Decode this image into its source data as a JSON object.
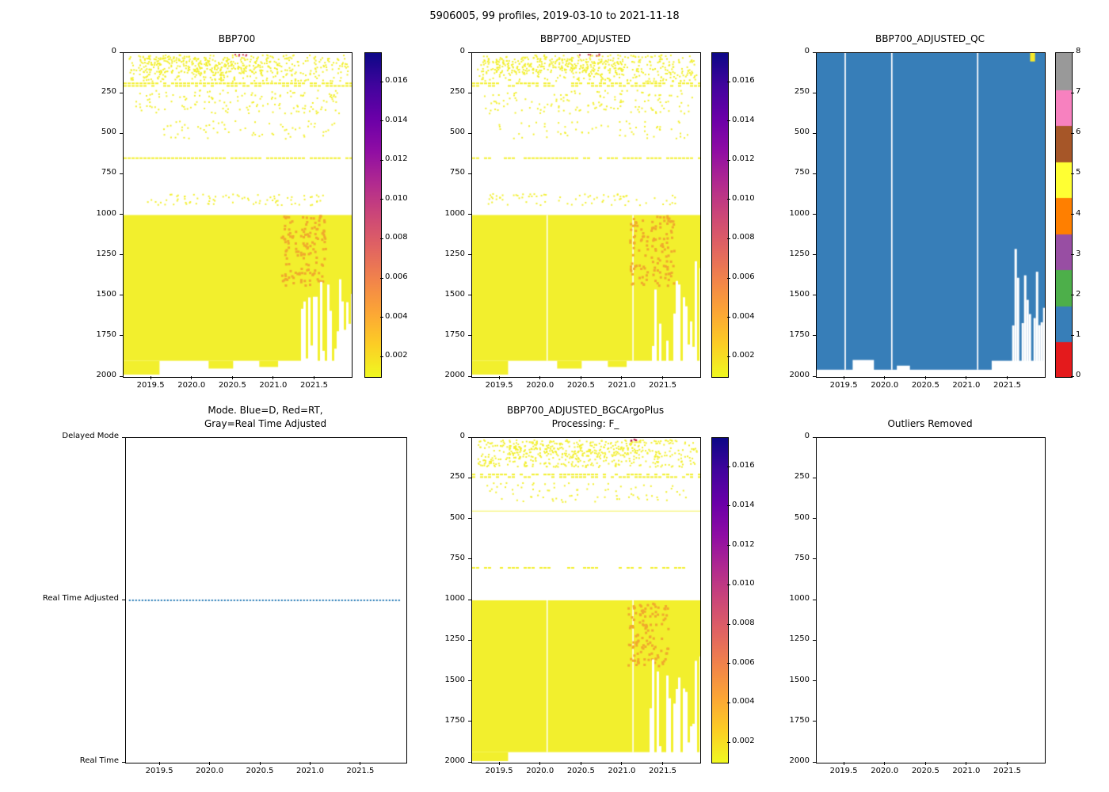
{
  "figure": {
    "title": "5906005, 99 profiles, 2019-03-10 to 2021-11-18",
    "float_id": "5906005",
    "n_profiles": "99",
    "date_range": "2019-03-10 to 2021-11-18"
  },
  "chart_data": [
    {
      "id": "bbp700",
      "type": "heatmap",
      "title": "BBP700",
      "xlabel": "",
      "ylabel": "",
      "xlim": [
        2019.16,
        2021.95
      ],
      "ylim": [
        0,
        2000
      ],
      "xticks": [
        2019.5,
        2020.0,
        2020.5,
        2021.0,
        2021.5
      ],
      "xtick_labels": [
        "2019.5",
        "2020.0",
        "2020.5",
        "2021.0",
        "2021.5"
      ],
      "yticks": [
        0,
        250,
        500,
        750,
        1000,
        1250,
        1500,
        1750,
        2000
      ],
      "ytick_labels": [
        "0",
        "250",
        "500",
        "750",
        "1000",
        "1250",
        "1500",
        "1750",
        "2000"
      ],
      "base_color": "#f2ef2d",
      "colorbar": {
        "vmin": 0.001,
        "vmax": 0.0175,
        "ticks": [
          0.002,
          0.004,
          0.006,
          0.008,
          0.01,
          0.012,
          0.014,
          0.016
        ],
        "tick_labels": [
          "0.002",
          "0.004",
          "0.006",
          "0.008",
          "0.010",
          "0.012",
          "0.014",
          "0.016"
        ],
        "stops": [
          "#f0f921",
          "#fcce25",
          "#fca636",
          "#f2844b",
          "#e16462",
          "#cc4778",
          "#b12a90",
          "#8f0da4",
          "#6a00a8",
          "#41049d",
          "#0d0887"
        ]
      },
      "elements": [
        {
          "el": "speckle",
          "x": [
            2019.22,
            2021.9
          ],
          "depth": [
            8,
            170
          ],
          "count": 430,
          "seed": 11
        },
        {
          "el": "speckle",
          "x": [
            2019.35,
            2021.0
          ],
          "depth": [
            25,
            120
          ],
          "count": 160,
          "seed": 12
        },
        {
          "el": "dashband",
          "depth": [
            182,
            192
          ],
          "density": 0.75,
          "seed": 13
        },
        {
          "el": "dashband",
          "depth": [
            198,
            207
          ],
          "density": 0.55,
          "seed": 14
        },
        {
          "el": "speckle",
          "x": [
            2019.3,
            2021.85
          ],
          "depth": [
            225,
            370
          ],
          "count": 150,
          "seed": 15
        },
        {
          "el": "speckle",
          "x": [
            2019.45,
            2021.8
          ],
          "depth": [
            415,
            525
          ],
          "count": 65,
          "seed": 16
        },
        {
          "el": "dashband",
          "depth": [
            644,
            652
          ],
          "density": 0.85,
          "seed": 17
        },
        {
          "el": "speckle",
          "x": [
            2019.35,
            2021.65
          ],
          "depth": [
            865,
            935
          ],
          "count": 80,
          "seed": 18
        },
        {
          "el": "rect",
          "depth": [
            1000,
            1900
          ]
        },
        {
          "el": "rect",
          "x": [
            2019.16,
            2019.6
          ],
          "depth": [
            1900,
            1985
          ]
        },
        {
          "el": "rect",
          "x": [
            2020.2,
            2020.5
          ],
          "depth": [
            1900,
            1948
          ]
        },
        {
          "el": "rect",
          "x": [
            2020.82,
            2021.05
          ],
          "depth": [
            1900,
            1938
          ]
        },
        {
          "el": "speckle",
          "x": [
            2021.08,
            2021.62
          ],
          "depth": [
            1000,
            1430
          ],
          "count": 140,
          "size": 3,
          "color": "#f0a92e",
          "seed": 19
        },
        {
          "el": "speckle",
          "x": [
            2020.45,
            2020.72
          ],
          "depth": [
            3,
            13
          ],
          "count": 6,
          "color": "#cf3c55",
          "seed": 20
        },
        {
          "el": "ragged",
          "x": [
            2021.33,
            2021.95
          ],
          "top": [
            1270,
            1960
          ],
          "keep": 0.18,
          "seed": 21
        }
      ]
    },
    {
      "id": "bbp700_adjusted",
      "type": "heatmap",
      "title": "BBP700_ADJUSTED",
      "xlabel": "",
      "ylabel": "",
      "xlim": [
        2019.16,
        2021.95
      ],
      "ylim": [
        0,
        2000
      ],
      "xticks": [
        2019.5,
        2020.0,
        2020.5,
        2021.0,
        2021.5
      ],
      "xtick_labels": [
        "2019.5",
        "2020.0",
        "2020.5",
        "2021.0",
        "2021.5"
      ],
      "yticks": [
        0,
        250,
        500,
        750,
        1000,
        1250,
        1500,
        1750,
        2000
      ],
      "ytick_labels": [
        "0",
        "250",
        "500",
        "750",
        "1000",
        "1250",
        "1500",
        "1750",
        "2000"
      ],
      "base_color": "#f2ef2d",
      "colorbar": {
        "vmin": 0.001,
        "vmax": 0.0175,
        "ticks": [
          0.002,
          0.004,
          0.006,
          0.008,
          0.01,
          0.012,
          0.014,
          0.016
        ],
        "tick_labels": [
          "0.002",
          "0.004",
          "0.006",
          "0.008",
          "0.010",
          "0.012",
          "0.014",
          "0.016"
        ],
        "stops": [
          "#f0f921",
          "#fcce25",
          "#fca636",
          "#f2844b",
          "#e16462",
          "#cc4778",
          "#b12a90",
          "#8f0da4",
          "#6a00a8",
          "#41049d",
          "#0d0887"
        ]
      },
      "elements": [
        {
          "el": "speckle",
          "x": [
            2019.22,
            2021.9
          ],
          "depth": [
            8,
            170
          ],
          "count": 420,
          "seed": 111
        },
        {
          "el": "speckle",
          "x": [
            2019.35,
            2021.0
          ],
          "depth": [
            25,
            120
          ],
          "count": 150,
          "seed": 112
        },
        {
          "el": "dashband",
          "depth": [
            182,
            192
          ],
          "density": 0.72,
          "seed": 113
        },
        {
          "el": "dashband",
          "depth": [
            198,
            207
          ],
          "density": 0.52,
          "seed": 114
        },
        {
          "el": "speckle",
          "x": [
            2019.3,
            2021.85
          ],
          "depth": [
            225,
            370
          ],
          "count": 140,
          "seed": 115
        },
        {
          "el": "speckle",
          "x": [
            2019.45,
            2021.8
          ],
          "depth": [
            415,
            525
          ],
          "count": 60,
          "seed": 116
        },
        {
          "el": "dashband",
          "depth": [
            644,
            652
          ],
          "density": 0.82,
          "seed": 117
        },
        {
          "el": "speckle",
          "x": [
            2019.35,
            2021.65
          ],
          "depth": [
            865,
            935
          ],
          "count": 75,
          "seed": 118
        },
        {
          "el": "rect",
          "depth": [
            1000,
            1900
          ]
        },
        {
          "el": "rect",
          "x": [
            2019.16,
            2019.6
          ],
          "depth": [
            1900,
            1985
          ]
        },
        {
          "el": "rect",
          "x": [
            2020.2,
            2020.5
          ],
          "depth": [
            1900,
            1948
          ]
        },
        {
          "el": "rect",
          "x": [
            2020.82,
            2021.05
          ],
          "depth": [
            1900,
            1938
          ]
        },
        {
          "el": "rect",
          "x": [
            2020.07,
            2020.085
          ],
          "depth": [
            1000,
            1900
          ],
          "color": "#ffffff"
        },
        {
          "el": "rect",
          "x": [
            2021.12,
            2021.135
          ],
          "depth": [
            1000,
            1900
          ],
          "color": "#ffffff"
        },
        {
          "el": "speckle",
          "x": [
            2021.08,
            2021.62
          ],
          "depth": [
            1000,
            1430
          ],
          "count": 130,
          "size": 3,
          "color": "#f0a92e",
          "seed": 119
        },
        {
          "el": "speckle",
          "x": [
            2020.45,
            2020.72
          ],
          "depth": [
            3,
            13
          ],
          "count": 6,
          "color": "#cf3c55",
          "seed": 120
        },
        {
          "el": "ragged",
          "x": [
            2021.33,
            2021.95
          ],
          "top": [
            1270,
            1960
          ],
          "keep": 0.18,
          "seed": 121
        }
      ]
    },
    {
      "id": "qc",
      "type": "heatmap",
      "title": "BBP700_ADJUSTED_QC",
      "xlabel": "",
      "ylabel": "",
      "xlim": [
        2019.16,
        2021.95
      ],
      "ylim": [
        0,
        2000
      ],
      "xticks": [
        2019.5,
        2020.0,
        2020.5,
        2021.0,
        2021.5
      ],
      "xtick_labels": [
        "2019.5",
        "2020.0",
        "2020.5",
        "2021.0",
        "2021.5"
      ],
      "yticks": [
        0,
        250,
        500,
        750,
        1000,
        1250,
        1500,
        1750,
        2000
      ],
      "ytick_labels": [
        "0",
        "250",
        "500",
        "750",
        "1000",
        "1250",
        "1500",
        "1750",
        "2000"
      ],
      "base_color": "#377eb8",
      "colorbar": {
        "discrete": true,
        "colors": [
          "#e41a1c",
          "#377eb8",
          "#4daf4a",
          "#984ea3",
          "#ff7f00",
          "#ffff33",
          "#a65628",
          "#f781bf",
          "#999999"
        ],
        "ticks": [
          0,
          1,
          2,
          3,
          4,
          5,
          6,
          7,
          8
        ],
        "tick_labels": [
          "0",
          "1",
          "2",
          "3",
          "4",
          "5",
          "6",
          "7",
          "8"
        ]
      },
      "elements": [
        {
          "el": "rect",
          "depth": [
            0,
            1955
          ],
          "color": "#377eb8"
        },
        {
          "el": "rect",
          "x": [
            2019.6,
            2019.86
          ],
          "depth": [
            1895,
            2000
          ],
          "color": "#ffffff"
        },
        {
          "el": "rect",
          "x": [
            2020.14,
            2020.3
          ],
          "depth": [
            1930,
            2000
          ],
          "color": "#ffffff"
        },
        {
          "el": "rect",
          "x": [
            2021.3,
            2021.95
          ],
          "depth": [
            1900,
            2000
          ],
          "color": "#ffffff"
        },
        {
          "el": "rect",
          "x": [
            2019.5,
            2019.517
          ],
          "depth": [
            0,
            1955
          ],
          "color": "#ffffff"
        },
        {
          "el": "rect",
          "x": [
            2020.07,
            2020.087
          ],
          "depth": [
            0,
            1955
          ],
          "color": "#ffffff"
        },
        {
          "el": "rect",
          "x": [
            2021.12,
            2021.137
          ],
          "depth": [
            0,
            1955
          ],
          "color": "#ffffff"
        },
        {
          "el": "ragged",
          "x": [
            2021.55,
            2021.95
          ],
          "top": [
            1180,
            1780
          ],
          "keep": 0.15,
          "seed": 31
        },
        {
          "el": "rect",
          "x": [
            2021.77,
            2021.83
          ],
          "depth": [
            0,
            52
          ],
          "color": "#f7e92a"
        }
      ]
    },
    {
      "id": "mode",
      "type": "line",
      "title": "Mode. Blue=D, Red=RT,\nGray=Real Time Adjusted",
      "xlabel": "",
      "ylabel": "",
      "xlim": [
        2019.16,
        2021.95
      ],
      "ylim": [
        2,
        0
      ],
      "xticks": [
        2019.5,
        2020.0,
        2020.5,
        2021.0,
        2021.5
      ],
      "xtick_labels": [
        "2019.5",
        "2020.0",
        "2020.5",
        "2021.0",
        "2021.5"
      ],
      "yticks": [
        2,
        1,
        0
      ],
      "ytick_labels": [
        "Delayed Mode",
        "Real Time Adjusted",
        "Real Time"
      ],
      "line_color": "#1f77b4",
      "elements": [
        {
          "el": "dotline",
          "x": [
            2019.19,
            2021.88
          ],
          "y": 1,
          "color": "#1f77b4"
        }
      ]
    },
    {
      "id": "bgcargoplus",
      "type": "heatmap",
      "title": "BBP700_ADJUSTED_BGCArgoPlus\nProcessing: F_",
      "xlabel": "",
      "ylabel": "",
      "xlim": [
        2019.16,
        2021.95
      ],
      "ylim": [
        0,
        2000
      ],
      "xticks": [
        2019.5,
        2020.0,
        2020.5,
        2021.0,
        2021.5
      ],
      "xtick_labels": [
        "2019.5",
        "2020.0",
        "2020.5",
        "2021.0",
        "2021.5"
      ],
      "yticks": [
        0,
        250,
        500,
        750,
        1000,
        1250,
        1500,
        1750,
        2000
      ],
      "ytick_labels": [
        "0",
        "250",
        "500",
        "750",
        "1000",
        "1250",
        "1500",
        "1750",
        "2000"
      ],
      "base_color": "#f2ef2d",
      "colorbar": {
        "vmin": 0.001,
        "vmax": 0.0175,
        "ticks": [
          0.002,
          0.004,
          0.006,
          0.008,
          0.01,
          0.012,
          0.014,
          0.016
        ],
        "tick_labels": [
          "0.002",
          "0.004",
          "0.006",
          "0.008",
          "0.010",
          "0.012",
          "0.014",
          "0.016"
        ],
        "stops": [
          "#f0f921",
          "#fcce25",
          "#fca636",
          "#f2844b",
          "#e16462",
          "#cc4778",
          "#b12a90",
          "#8f0da4",
          "#6a00a8",
          "#41049d",
          "#0d0887"
        ]
      },
      "elements": [
        {
          "el": "speckle",
          "x": [
            2019.22,
            2021.9
          ],
          "depth": [
            8,
            175
          ],
          "count": 440,
          "seed": 51
        },
        {
          "el": "speckle",
          "x": [
            2019.6,
            2021.2
          ],
          "depth": [
            20,
            120
          ],
          "count": 150,
          "seed": 52
        },
        {
          "el": "dashband",
          "depth": [
            220,
            230
          ],
          "density": 0.8,
          "seed": 53
        },
        {
          "el": "dashband",
          "depth": [
            236,
            245
          ],
          "density": 0.6,
          "seed": 54
        },
        {
          "el": "speckle",
          "x": [
            2019.3,
            2021.8
          ],
          "depth": [
            270,
            390
          ],
          "count": 80,
          "seed": 55
        },
        {
          "el": "rect",
          "depth": [
            448,
            452
          ]
        },
        {
          "el": "dashband",
          "depth": [
            795,
            803
          ],
          "density": 0.5,
          "seed": 56
        },
        {
          "el": "rect",
          "depth": [
            1000,
            1935
          ]
        },
        {
          "el": "rect",
          "x": [
            2019.16,
            2019.6
          ],
          "depth": [
            1935,
            1990
          ]
        },
        {
          "el": "rect",
          "x": [
            2020.07,
            2020.085
          ],
          "depth": [
            1000,
            1935
          ],
          "color": "#ffffff"
        },
        {
          "el": "rect",
          "x": [
            2021.12,
            2021.135
          ],
          "depth": [
            1000,
            1935
          ],
          "color": "#ffffff"
        },
        {
          "el": "speckle",
          "x": [
            2021.05,
            2021.55
          ],
          "depth": [
            1000,
            1400
          ],
          "count": 120,
          "size": 3,
          "color": "#f0a92e",
          "seed": 57
        },
        {
          "el": "speckle",
          "x": [
            2021.02,
            2021.18
          ],
          "depth": [
            4,
            14
          ],
          "count": 5,
          "color": "#b5123d",
          "seed": 58
        },
        {
          "el": "ragged",
          "x": [
            2021.33,
            2021.95
          ],
          "top": [
            1260,
            1920
          ],
          "keep": 0.2,
          "seed": 59
        }
      ]
    },
    {
      "id": "outliers",
      "type": "heatmap",
      "title": "Outliers Removed",
      "xlabel": "",
      "ylabel": "",
      "xlim": [
        2019.16,
        2021.95
      ],
      "ylim": [
        0,
        2000
      ],
      "xticks": [
        2019.5,
        2020.0,
        2020.5,
        2021.0,
        2021.5
      ],
      "xtick_labels": [
        "2019.5",
        "2020.0",
        "2020.5",
        "2021.0",
        "2021.5"
      ],
      "yticks": [
        0,
        250,
        500,
        750,
        1000,
        1250,
        1500,
        1750,
        2000
      ],
      "ytick_labels": [
        "0",
        "250",
        "500",
        "750",
        "1000",
        "1250",
        "1500",
        "1750",
        "2000"
      ],
      "elements": []
    }
  ]
}
